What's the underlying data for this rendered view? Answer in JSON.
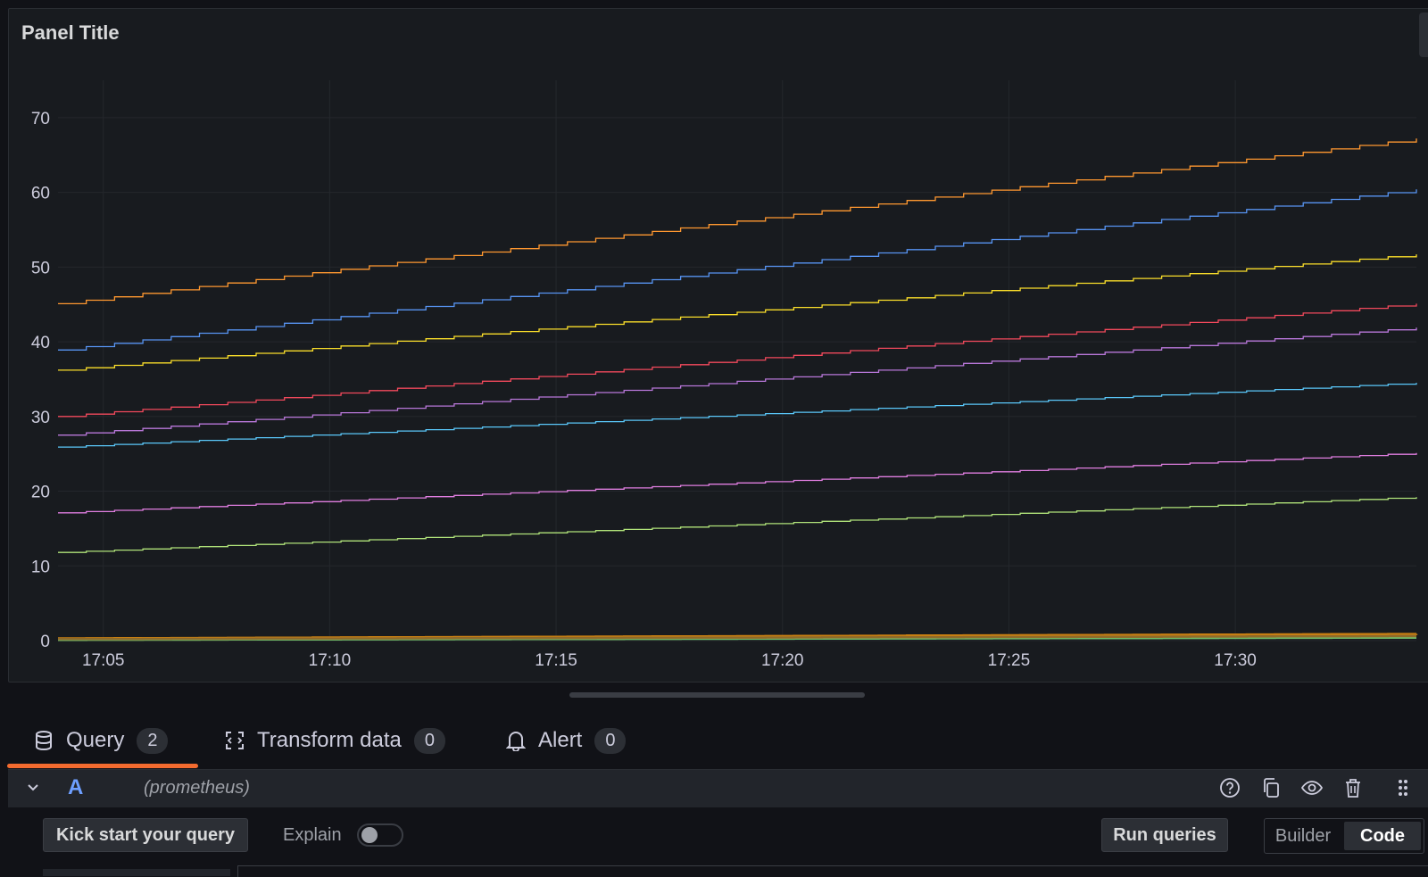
{
  "panel": {
    "title": "Panel Title"
  },
  "chart_data": {
    "type": "line",
    "xlabel": "",
    "ylabel": "",
    "ylim": [
      0,
      75
    ],
    "y_ticks": [
      "70",
      "60",
      "50",
      "40",
      "30",
      "20",
      "10",
      "0"
    ],
    "x_ticks": [
      "17:05",
      "17:10",
      "17:15",
      "17:20",
      "17:25",
      "17:30"
    ],
    "x_start": "17:04",
    "x_end": "17:34",
    "grid": true,
    "legend": "none",
    "interpolation": "step",
    "series": [
      {
        "color": "#ff9830",
        "start": 45.1,
        "end": 67.2
      },
      {
        "color": "#5794f2",
        "start": 38.9,
        "end": 60.4
      },
      {
        "color": "#fade2a",
        "start": 36.2,
        "end": 51.7
      },
      {
        "color": "#f2495c",
        "start": 30.0,
        "end": 45.1
      },
      {
        "color": "#b877d9",
        "start": 27.5,
        "end": 41.9
      },
      {
        "color": "#5ac8fa",
        "start": 25.9,
        "end": 34.5
      },
      {
        "color": "#e07ee0",
        "start": 17.1,
        "end": 25.1
      },
      {
        "color": "#b0e37a",
        "start": 11.8,
        "end": 19.2
      },
      {
        "color": "#c77f12",
        "start": 0.3,
        "end": 0.9
      },
      {
        "color": "#73bf69",
        "start": 0.1,
        "end": 0.4
      },
      {
        "color": "#8f6a2a",
        "start": 0.2,
        "end": 0.6
      }
    ]
  },
  "tabs": [
    {
      "label": "Query",
      "count": "2"
    },
    {
      "label": "Transform data",
      "count": "0"
    },
    {
      "label": "Alert",
      "count": "0"
    }
  ],
  "query": {
    "ref": "A",
    "datasource": "(prometheus)"
  },
  "toolbar": {
    "kick_start": "Kick start your query",
    "explain": "Explain",
    "run_queries": "Run queries",
    "builder": "Builder",
    "code": "Code"
  },
  "colors": {
    "accent": "#f46b2f",
    "background": "#111217",
    "panel": "#181b1f"
  }
}
